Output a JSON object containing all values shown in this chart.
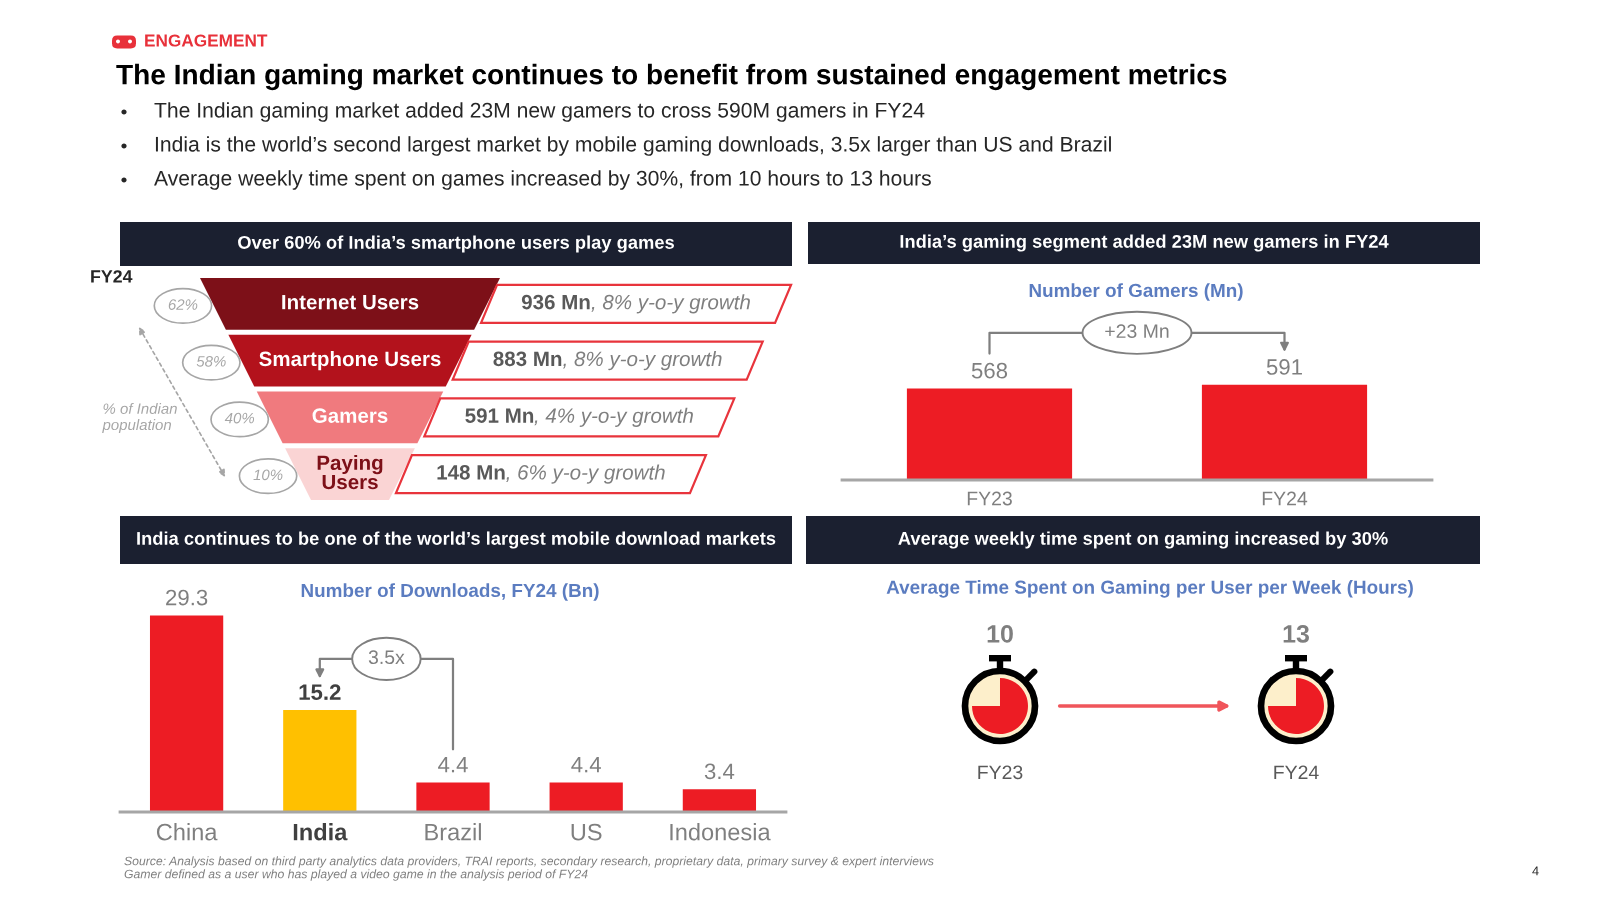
{
  "chart_data": [
    {
      "type": "other",
      "subtitle": "ENGAGEMENT",
      "title": "The Indian gaming market continues to benefit from sustained engagement metrics",
      "annotations": [
        "The Indian gaming market added 23M new gamers to cross 590M gamers in FY24",
        "India is the world’s second largest market by mobile gaming downloads, 3.5x larger than US and Brazil",
        "Average weekly time spent on games increased by 30%, from 10 hours to 13 hours",
        "Source: Analysis based on third party analytics data providers, TRAI reports, secondary research, proprietary data, primary survey & expert interviews",
        "Gamer defined as a user who has played a video game in the analysis period of FY24",
        "4"
      ]
    },
    {
      "type": "other",
      "title": "Over 60% of India’s smartphone users play games",
      "categories": [
        "Internet Users",
        "Smartphone Users",
        "Gamers",
        "Paying Users"
      ],
      "colors": [
        "#7d1018",
        "#b3121c",
        "#f07a7e",
        "#fad4d4"
      ],
      "annotations": [
        "FY24",
        "936 Mn, 8% y-o-y growth",
        "883 Mn, 8% y-o-y growth",
        "591 Mn, 4% y-o-y growth",
        "148 Mn, 6% y-o-y growth",
        "62%",
        "58%",
        "40%",
        "10%",
        "% of Indian population"
      ]
    },
    {
      "type": "bar",
      "title": "India’s gaming segment added 23M new gamers in FY24",
      "subtitle": "Number of Gamers (Mn)",
      "categories": [
        "FY23",
        "FY24"
      ],
      "values": [
        568,
        591
      ],
      "color": "#ed1c24",
      "data_labels": true,
      "annotations": [
        "+23 Mn"
      ]
    },
    {
      "type": "bar",
      "title": "India continues to be one of the world’s largest mobile download markets",
      "subtitle": "Number of Downloads, FY24 (Bn)",
      "categories": [
        "China",
        "India",
        "Brazil",
        "US",
        "Indonesia"
      ],
      "values": [
        29.3,
        15.2,
        4.4,
        4.4,
        3.4
      ],
      "colors": [
        "#ed1c24",
        "#ffc000",
        "#ed1c24",
        "#ed1c24",
        "#ed1c24"
      ],
      "data_labels": true,
      "annotations": [
        "3.5x"
      ]
    },
    {
      "type": "other",
      "title": "Average weekly time spent on gaming increased by 30%",
      "subtitle": "Average Time Spent on Gaming per User per Week (Hours)",
      "categories": [
        "FY23",
        "FY24"
      ],
      "values": [
        10,
        13
      ],
      "data_labels": true
    }
  ]
}
